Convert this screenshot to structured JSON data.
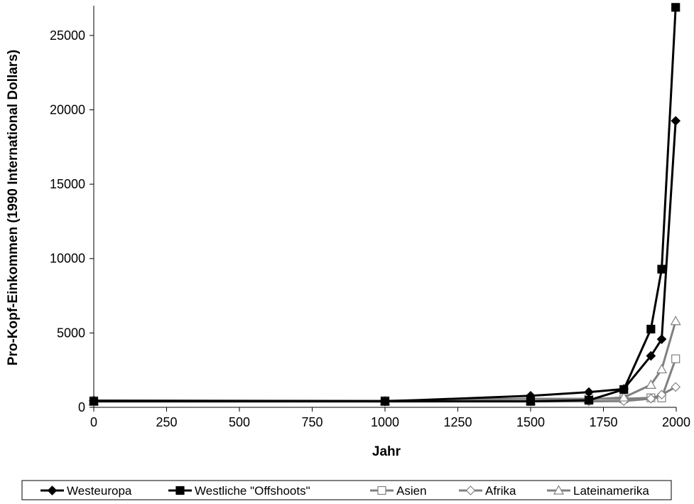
{
  "chart_data": {
    "type": "line",
    "title": "",
    "xlabel": "Jahr",
    "ylabel": "Pro-Kopf-Einkommen (1990 International Dollars)",
    "xlim": [
      0,
      2000
    ],
    "ylim": [
      0,
      27000
    ],
    "xticks": [
      0,
      250,
      500,
      750,
      1000,
      1250,
      1500,
      1750,
      2000
    ],
    "yticks": [
      0,
      5000,
      10000,
      15000,
      20000,
      25000
    ],
    "grid": false,
    "legend_position": "bottom",
    "x": [
      0,
      1000,
      1500,
      1700,
      1820,
      1913,
      1950,
      1998
    ],
    "series": [
      {
        "name": "Westeuropa",
        "color": "#000000",
        "marker": "diamond-filled",
        "values": [
          450,
          400,
          774,
          1024,
          1232,
          3458,
          4579,
          19256
        ]
      },
      {
        "name": "Westliche \"Offshoots\"",
        "color": "#000000",
        "marker": "square-filled",
        "values": [
          400,
          400,
          400,
          476,
          1201,
          5257,
          9288,
          26888
        ]
      },
      {
        "name": "Asien",
        "color": "#808080",
        "marker": "square-open",
        "values": [
          450,
          450,
          572,
          571,
          575,
          640,
          635,
          3262
        ]
      },
      {
        "name": "Afrika",
        "color": "#808080",
        "marker": "diamond-open",
        "values": [
          425,
          416,
          400,
          400,
          418,
          585,
          852,
          1368
        ]
      },
      {
        "name": "Lateinamerika",
        "color": "#808080",
        "marker": "triangle-open",
        "values": [
          400,
          400,
          416,
          529,
          665,
          1511,
          2554,
          5795
        ]
      }
    ]
  }
}
